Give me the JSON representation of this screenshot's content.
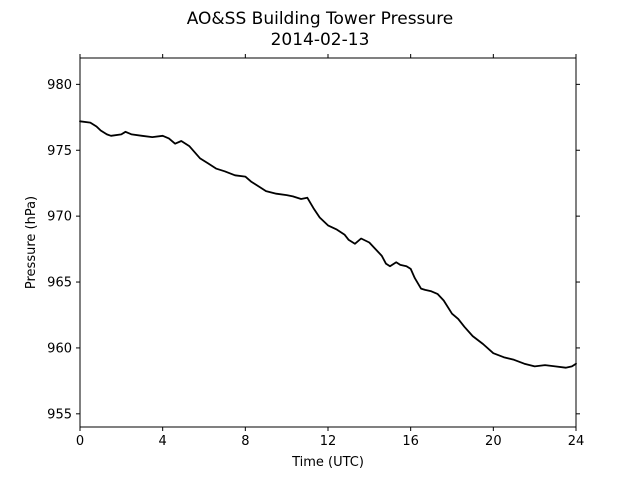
{
  "chart_data": {
    "type": "line",
    "title": "AO&SS Building Tower Pressure",
    "subtitle": "2014-02-13",
    "xlabel": "Time (UTC)",
    "ylabel": "Pressure (hPa)",
    "xlim": [
      0,
      24
    ],
    "ylim": [
      954,
      982
    ],
    "xticks": [
      0,
      4,
      8,
      12,
      16,
      20,
      24
    ],
    "yticks": [
      955,
      960,
      965,
      970,
      975,
      980
    ],
    "grid": false,
    "legend": "none",
    "colors": {
      "line": "#000000"
    },
    "series": [
      {
        "x": [
          0,
          0.5,
          0.8,
          1.0,
          1.3,
          1.5,
          2.0,
          2.2,
          2.5,
          3.0,
          3.5,
          4.0,
          4.3,
          4.6,
          4.9,
          5.3,
          5.8,
          6.2,
          6.6,
          7.0,
          7.5,
          8.0,
          8.3,
          8.7,
          9.0,
          9.5,
          10.0,
          10.3,
          10.7,
          11.0,
          11.3,
          11.6,
          12.0,
          12.4,
          12.8,
          13.0,
          13.3,
          13.6,
          14.0,
          14.3,
          14.6,
          14.8,
          15.0,
          15.3,
          15.5,
          15.8,
          16.0,
          16.2,
          16.5,
          16.7,
          17.0,
          17.3,
          17.6,
          18.0,
          18.3,
          18.6,
          19.0,
          19.5,
          20.0,
          20.5,
          21.0,
          21.5,
          22.0,
          22.5,
          23.0,
          23.5,
          23.8,
          23.9,
          24.0
        ],
        "values": [
          977.2,
          977.1,
          976.8,
          976.5,
          976.2,
          976.1,
          976.2,
          976.4,
          976.2,
          976.1,
          976.0,
          976.1,
          975.9,
          975.5,
          975.7,
          975.3,
          974.4,
          974.0,
          973.6,
          973.4,
          973.1,
          973.0,
          972.6,
          972.2,
          971.9,
          971.7,
          971.6,
          971.5,
          971.3,
          971.4,
          970.6,
          969.9,
          969.3,
          969.0,
          968.6,
          968.2,
          967.9,
          968.3,
          968.0,
          967.5,
          967.0,
          966.4,
          966.2,
          966.5,
          966.3,
          966.2,
          966.0,
          965.3,
          964.5,
          964.4,
          964.3,
          964.1,
          963.6,
          962.6,
          962.2,
          961.6,
          960.9,
          960.3,
          959.6,
          959.3,
          959.1,
          958.8,
          958.6,
          958.7,
          958.6,
          958.5,
          958.6,
          958.7,
          958.8
        ]
      }
    ]
  }
}
